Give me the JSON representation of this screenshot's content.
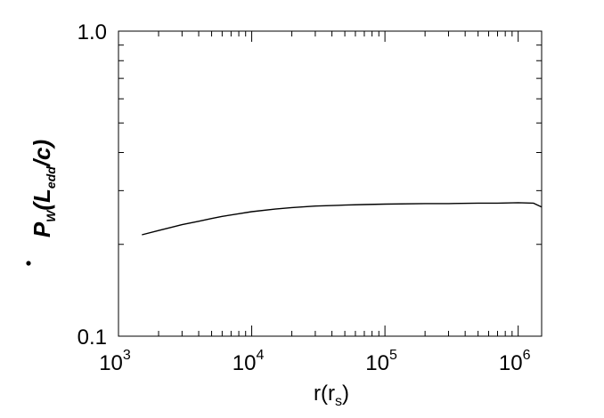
{
  "chart_data": {
    "type": "line",
    "title": "",
    "xscale": "log",
    "yscale": "log",
    "xlim": [
      1000,
      1500000
    ],
    "ylim": [
      0.1,
      1.0
    ],
    "xticks": [
      {
        "value": 1000,
        "base": "10",
        "exp": "3"
      },
      {
        "value": 10000,
        "base": "10",
        "exp": "4"
      },
      {
        "value": 100000,
        "base": "10",
        "exp": "5"
      },
      {
        "value": 1000000,
        "base": "10",
        "exp": "6"
      }
    ],
    "yticks": [
      {
        "value": 0.1,
        "label": "0.1"
      },
      {
        "value": 1.0,
        "label": "1.0"
      }
    ],
    "xlabel": {
      "main": "r(r",
      "sub": "s",
      "close": ")"
    },
    "ylabel": {
      "main": "P",
      "sub_w": "W",
      "open": "(L",
      "sub_edd": "edd",
      "close": "/c)"
    },
    "grid": false,
    "series": [
      {
        "color": "#000000",
        "x": [
          1500,
          2000,
          3000,
          4000,
          5000,
          6000,
          8000,
          10000,
          15000,
          20000,
          30000,
          50000,
          70000,
          100000,
          200000,
          300000,
          500000,
          700000,
          1000000,
          1300000,
          1500000
        ],
        "y": [
          0.215,
          0.222,
          0.232,
          0.238,
          0.243,
          0.247,
          0.252,
          0.256,
          0.261,
          0.264,
          0.267,
          0.269,
          0.27,
          0.271,
          0.272,
          0.272,
          0.273,
          0.273,
          0.274,
          0.273,
          0.265
        ]
      }
    ]
  }
}
